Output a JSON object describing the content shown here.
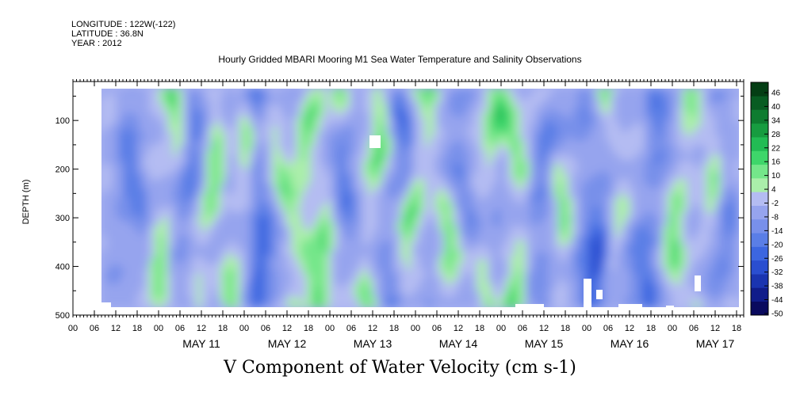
{
  "header": {
    "longitude": "LONGITUDE : 122W(-122)",
    "latitude": "LATITUDE : 36.8N",
    "year": "YEAR : 2012"
  },
  "chart_data": {
    "type": "heatmap",
    "title": "Hourly Gridded MBARI Mooring M1 Sea Water Temperature and Salinity Observations",
    "variable_title": "V Component of Water Velocity (cm s-1)",
    "ylabel": "DEPTH (m)",
    "y_range": [
      500,
      20
    ],
    "y_ticks": [
      100,
      200,
      300,
      400,
      500
    ],
    "x_range_hours": [
      "2012-05-10 00:00",
      "2012-05-17 20:00"
    ],
    "x_hour_labels": [
      "00",
      "06",
      "12",
      "18",
      "00",
      "06",
      "12",
      "18",
      "00",
      "06",
      "12",
      "18",
      "00",
      "06",
      "12",
      "18",
      "00",
      "06",
      "12",
      "18",
      "00",
      "06",
      "12",
      "18",
      "00",
      "06",
      "12",
      "18",
      "00",
      "06",
      "12",
      "18"
    ],
    "x_day_labels": [
      "MAY 11",
      "MAY 12",
      "MAY 13",
      "MAY 14",
      "MAY 15",
      "MAY 16",
      "MAY 17"
    ],
    "colorbar": {
      "levels": [
        -50,
        -44,
        -38,
        -32,
        -26,
        -20,
        -14,
        -8,
        -2,
        4,
        10,
        16,
        22,
        28,
        34,
        40,
        46
      ],
      "labels": [
        "46",
        "40",
        "34",
        "28",
        "22",
        "16",
        "10",
        "4",
        "-2",
        "-8",
        "-14",
        "-20",
        "-26",
        "-32",
        "-38",
        "-44",
        "-50"
      ]
    },
    "field_description": "alternating bands of weak northward (green, 4 to 16) and southward (blue, -2 to -20) flow; strongest southward flow near MAY 16 at 300-450 m"
  },
  "colors": {
    "colorbar": [
      "#0a0a5e",
      "#101c8a",
      "#1a34b0",
      "#2a4ed0",
      "#3c66e0",
      "#5a7ee6",
      "#7890ea",
      "#96a4ee",
      "#b4bcf2",
      "#aaeeaa",
      "#74e68a",
      "#3ed66a",
      "#22bc54",
      "#179c40",
      "#0e7c30",
      "#085c22",
      "#043e14"
    ],
    "background": "#ffffff"
  }
}
